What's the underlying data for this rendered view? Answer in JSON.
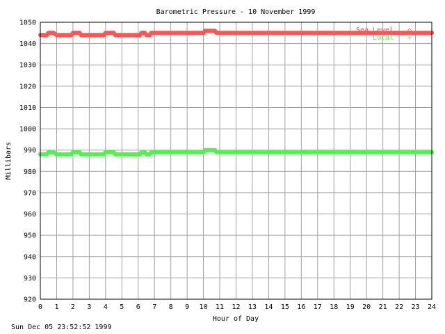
{
  "chart_data": {
    "type": "line",
    "title": "Barometric Pressure - 10 November 1999",
    "xlabel": "Hour of Day",
    "ylabel": "Millibars",
    "xlim": [
      0,
      24
    ],
    "ylim": [
      920,
      1050
    ],
    "x_ticks": [
      "0",
      "1",
      "2",
      "3",
      "4",
      "5",
      "6",
      "7",
      "8",
      "9",
      "10",
      "11",
      "12",
      "13",
      "14",
      "15",
      "16",
      "17",
      "18",
      "19",
      "20",
      "21",
      "22",
      "23",
      "24"
    ],
    "y_ticks": [
      "920",
      "930",
      "940",
      "950",
      "960",
      "970",
      "980",
      "990",
      "1000",
      "1010",
      "1020",
      "1030",
      "1040",
      "1050"
    ],
    "grid": true,
    "legend_position": "top-right",
    "series": [
      {
        "name": "Sea Level",
        "marker": "◇",
        "color": "#ff5555",
        "x": [
          0,
          0.4,
          0.5,
          0.8,
          1.0,
          1.9,
          2.0,
          2.4,
          2.5,
          3.9,
          4.0,
          4.5,
          4.6,
          6.1,
          6.2,
          6.4,
          6.5,
          6.7,
          6.8,
          10.0,
          10.1,
          10.7,
          10.8,
          24.0
        ],
        "y": [
          1044,
          1044,
          1045,
          1045,
          1044,
          1044,
          1045,
          1045,
          1044,
          1044,
          1045,
          1045,
          1044,
          1044,
          1045,
          1045,
          1044,
          1044,
          1045,
          1045,
          1046,
          1046,
          1045,
          1045
        ]
      },
      {
        "name": "Local",
        "marker": "+",
        "color": "#55ee55",
        "x": [
          0,
          0.4,
          0.5,
          0.8,
          1.0,
          1.9,
          2.0,
          2.4,
          2.5,
          3.9,
          4.0,
          4.5,
          4.6,
          6.1,
          6.2,
          6.4,
          6.5,
          6.7,
          6.8,
          10.0,
          10.1,
          10.7,
          10.8,
          24.0
        ],
        "y": [
          988,
          988,
          989,
          989,
          988,
          988,
          989,
          989,
          988,
          988,
          989,
          989,
          988,
          988,
          989,
          989,
          988,
          988,
          989,
          989,
          990,
          990,
          989,
          989
        ]
      }
    ]
  },
  "footer": {
    "timestamp": "Sun Dec 05 23:52:52 1999"
  }
}
